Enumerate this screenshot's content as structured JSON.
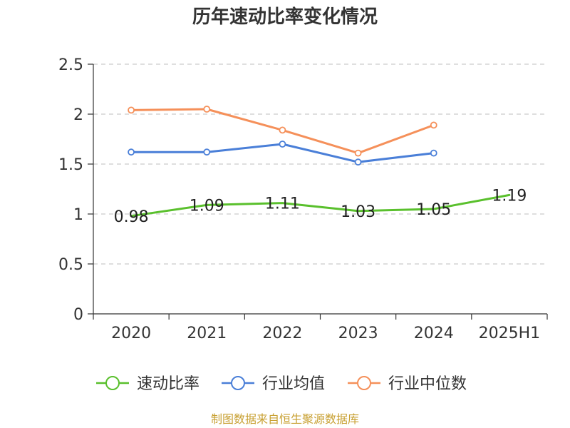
{
  "chart_data": {
    "type": "line",
    "title": "历年速动比率变化情况",
    "categories": [
      "2020",
      "2021",
      "2022",
      "2023",
      "2024",
      "2025H1"
    ],
    "ylim": [
      0,
      2.5
    ],
    "yticks": [
      "0",
      "0.5",
      "1",
      "1.5",
      "2",
      "2.5"
    ],
    "grid": true,
    "legend_position": "bottom",
    "series": [
      {
        "name": "速动比率",
        "color": "#5ac02d",
        "values": [
          0.98,
          1.09,
          1.11,
          1.03,
          1.05,
          1.19
        ],
        "labels": [
          "0.98",
          "1.09",
          "1.11",
          "1.03",
          "1.05",
          "1.19"
        ],
        "show_markers": false,
        "show_labels": true
      },
      {
        "name": "行业均值",
        "color": "#4a7fd8",
        "values": [
          1.62,
          1.62,
          1.7,
          1.52,
          1.61,
          null
        ],
        "show_markers": true,
        "show_labels": false
      },
      {
        "name": "行业中位数",
        "color": "#f5905a",
        "values": [
          2.04,
          2.05,
          1.84,
          1.61,
          1.89,
          null
        ],
        "show_markers": true,
        "show_labels": false
      }
    ]
  },
  "footer": {
    "source": "制图数据来自恒生聚源数据库"
  }
}
